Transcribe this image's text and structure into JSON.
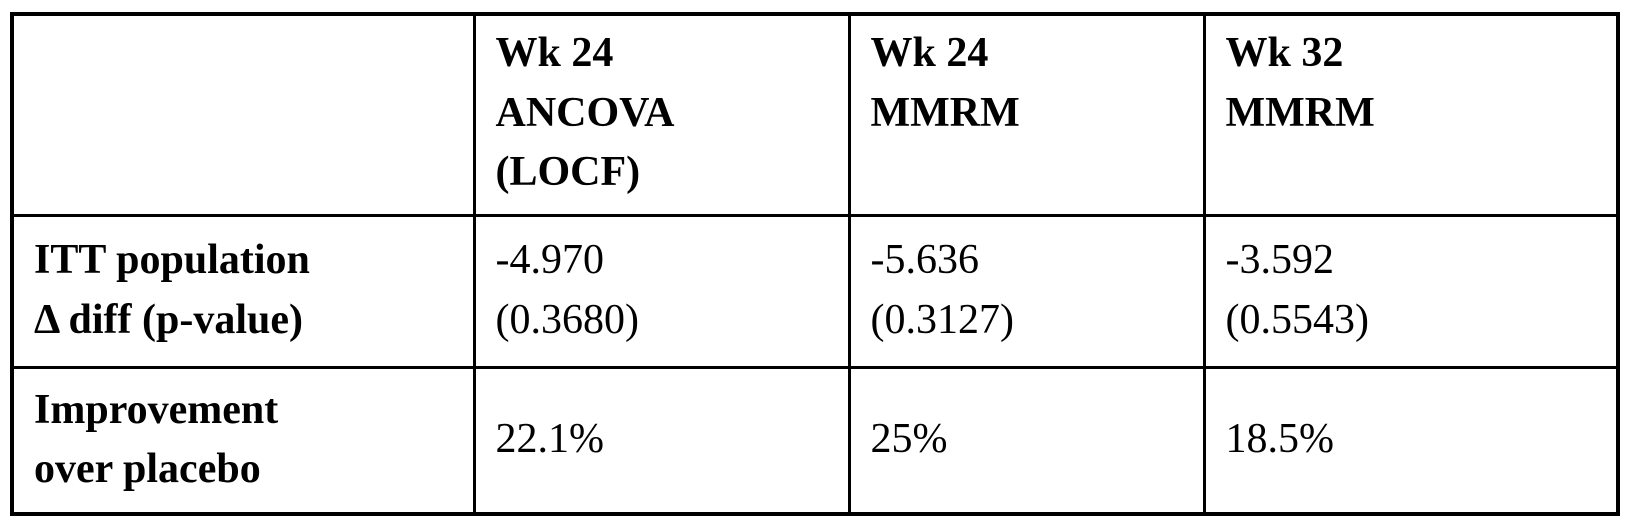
{
  "colors": {
    "background": "#ffffff",
    "border": "#000000",
    "text": "#000000"
  },
  "table": {
    "columns": [
      {
        "label": ""
      },
      {
        "label": "Wk 24\nANCOVA\n(LOCF)"
      },
      {
        "label": "Wk 24\nMMRM"
      },
      {
        "label": "Wk 32\nMMRM"
      }
    ],
    "rows": [
      {
        "label": "ITT population\nΔ diff (p-value)",
        "values": [
          "-4.970\n(0.3680)",
          "-5.636\n(0.3127)",
          "-3.592\n(0.5543)"
        ]
      },
      {
        "label": "Improvement\nover placebo",
        "values": [
          "22.1%",
          "25%",
          "18.5%"
        ]
      }
    ]
  }
}
